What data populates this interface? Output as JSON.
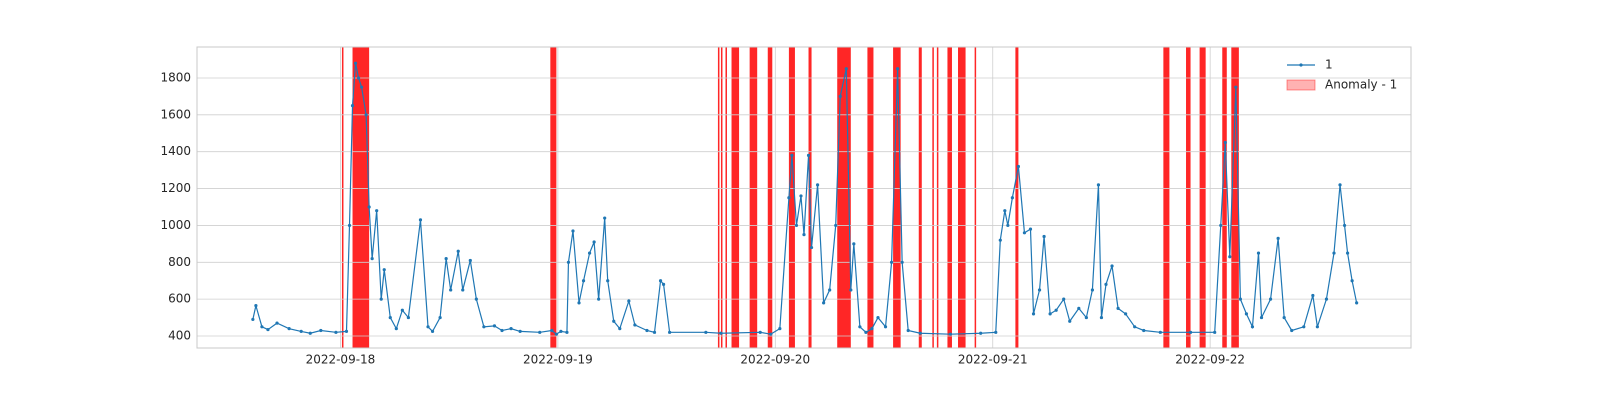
{
  "chart_data": {
    "type": "line",
    "x": [
      "2022-09-17T14:20",
      "2022-09-17T14:40",
      "2022-09-17T15:20",
      "2022-09-17T16:00",
      "2022-09-17T17:00",
      "2022-09-17T18:20",
      "2022-09-17T19:40",
      "2022-09-17T20:40",
      "2022-09-17T21:50",
      "2022-09-17T23:30",
      "2022-09-18T00:40",
      "2022-09-18T01:00",
      "2022-09-18T01:20",
      "2022-09-18T01:40",
      "2022-09-18T02:00",
      "2022-09-18T02:20",
      "2022-09-18T02:50",
      "2022-09-18T03:10",
      "2022-09-18T03:30",
      "2022-09-18T04:00",
      "2022-09-18T04:30",
      "2022-09-18T04:50",
      "2022-09-18T05:30",
      "2022-09-18T06:10",
      "2022-09-18T06:50",
      "2022-09-18T07:30",
      "2022-09-18T08:50",
      "2022-09-18T09:40",
      "2022-09-18T10:10",
      "2022-09-18T11:00",
      "2022-09-18T11:40",
      "2022-09-18T12:10",
      "2022-09-18T13:00",
      "2022-09-18T13:30",
      "2022-09-18T14:20",
      "2022-09-18T15:00",
      "2022-09-18T15:50",
      "2022-09-18T17:00",
      "2022-09-18T17:50",
      "2022-09-18T18:50",
      "2022-09-18T19:50",
      "2022-09-18T22:00",
      "2022-09-18T23:20",
      "2022-09-18T23:50",
      "2022-09-19T00:20",
      "2022-09-19T01:00",
      "2022-09-19T01:10",
      "2022-09-19T01:40",
      "2022-09-19T02:20",
      "2022-09-19T02:50",
      "2022-09-19T03:30",
      "2022-09-19T04:00",
      "2022-09-19T04:30",
      "2022-09-19T05:10",
      "2022-09-19T05:30",
      "2022-09-19T06:10",
      "2022-09-19T06:50",
      "2022-09-19T07:50",
      "2022-09-19T08:30",
      "2022-09-19T09:50",
      "2022-09-19T10:40",
      "2022-09-19T11:20",
      "2022-09-19T11:40",
      "2022-09-19T12:20",
      "2022-09-19T16:20",
      "2022-09-19T18:00",
      "2022-09-19T22:20",
      "2022-09-19T23:30",
      "2022-09-20T00:30",
      "2022-09-20T01:30",
      "2022-09-20T01:50",
      "2022-09-20T02:20",
      "2022-09-20T02:50",
      "2022-09-20T03:10",
      "2022-09-20T03:40",
      "2022-09-20T04:00",
      "2022-09-20T04:40",
      "2022-09-20T05:20",
      "2022-09-20T06:00",
      "2022-09-20T06:40",
      "2022-09-20T07:10",
      "2022-09-20T07:50",
      "2022-09-20T08:20",
      "2022-09-20T08:40",
      "2022-09-20T09:20",
      "2022-09-20T10:00",
      "2022-09-20T10:40",
      "2022-09-20T11:20",
      "2022-09-20T12:10",
      "2022-09-20T12:50",
      "2022-09-20T13:30",
      "2022-09-20T14:00",
      "2022-09-20T14:40",
      "2022-09-20T16:00",
      "2022-09-20T19:20",
      "2022-09-20T22:40",
      "2022-09-21T00:20",
      "2022-09-21T00:50",
      "2022-09-21T01:20",
      "2022-09-21T01:40",
      "2022-09-21T02:10",
      "2022-09-21T02:50",
      "2022-09-21T03:30",
      "2022-09-21T04:10",
      "2022-09-21T04:30",
      "2022-09-21T05:10",
      "2022-09-21T05:40",
      "2022-09-21T06:20",
      "2022-09-21T07:00",
      "2022-09-21T07:50",
      "2022-09-21T08:30",
      "2022-09-21T09:30",
      "2022-09-21T10:20",
      "2022-09-21T11:00",
      "2022-09-21T11:40",
      "2022-09-21T12:00",
      "2022-09-21T12:30",
      "2022-09-21T13:10",
      "2022-09-21T13:50",
      "2022-09-21T14:40",
      "2022-09-21T15:40",
      "2022-09-21T16:40",
      "2022-09-21T18:30",
      "2022-09-21T21:50",
      "2022-09-22T00:30",
      "2022-09-22T01:10",
      "2022-09-22T01:40",
      "2022-09-22T02:10",
      "2022-09-22T02:50",
      "2022-09-22T03:20",
      "2022-09-22T04:00",
      "2022-09-22T04:40",
      "2022-09-22T05:20",
      "2022-09-22T05:40",
      "2022-09-22T06:40",
      "2022-09-22T07:30",
      "2022-09-22T08:10",
      "2022-09-22T09:00",
      "2022-09-22T10:20",
      "2022-09-22T11:20",
      "2022-09-22T11:50",
      "2022-09-22T12:50",
      "2022-09-22T13:40",
      "2022-09-22T14:20",
      "2022-09-22T14:50",
      "2022-09-22T15:10",
      "2022-09-22T15:40",
      "2022-09-22T16:10"
    ],
    "series": [
      {
        "name": "1",
        "color": "#1f77b4",
        "values": [
          490,
          565,
          450,
          435,
          470,
          440,
          425,
          415,
          430,
          420,
          425,
          1000,
          1650,
          1880,
          1800,
          1750,
          1600,
          1100,
          820,
          1080,
          600,
          760,
          500,
          440,
          540,
          500,
          1030,
          450,
          425,
          500,
          820,
          650,
          860,
          650,
          810,
          600,
          450,
          455,
          430,
          440,
          425,
          420,
          430,
          410,
          425,
          420,
          800,
          970,
          580,
          700,
          850,
          910,
          600,
          1040,
          700,
          480,
          440,
          590,
          460,
          430,
          420,
          700,
          680,
          420,
          420,
          415,
          420,
          410,
          440,
          1150,
          1380,
          1000,
          1160,
          950,
          1380,
          880,
          1220,
          580,
          650,
          1000,
          1700,
          1850,
          650,
          900,
          450,
          420,
          440,
          500,
          450,
          800,
          1850,
          800,
          430,
          415,
          410,
          415,
          420,
          920,
          1080,
          1000,
          1150,
          1320,
          960,
          980,
          520,
          650,
          940,
          520,
          540,
          600,
          480,
          550,
          500,
          650,
          1220,
          500,
          680,
          780,
          550,
          520,
          450,
          430,
          420,
          420,
          420,
          1000,
          1450,
          830,
          1750,
          600,
          520,
          450,
          850,
          500,
          600,
          930,
          500,
          430,
          450,
          620,
          450,
          600,
          850,
          1220,
          1000,
          850,
          700,
          580
        ]
      }
    ],
    "anomalies": {
      "name": "Anomaly - 1",
      "color": "#ff0000",
      "spans": [
        [
          "2022-09-18T00:10",
          "2022-09-18T00:20"
        ],
        [
          "2022-09-18T01:20",
          "2022-09-18T03:10"
        ],
        [
          "2022-09-18T23:10",
          "2022-09-18T23:50"
        ],
        [
          "2022-09-19T17:40",
          "2022-09-19T17:50"
        ],
        [
          "2022-09-19T18:00",
          "2022-09-19T18:10"
        ],
        [
          "2022-09-19T18:30",
          "2022-09-19T18:40"
        ],
        [
          "2022-09-19T19:10",
          "2022-09-19T20:00"
        ],
        [
          "2022-09-19T21:10",
          "2022-09-19T22:00"
        ],
        [
          "2022-09-19T23:10",
          "2022-09-19T23:40"
        ],
        [
          "2022-09-20T01:30",
          "2022-09-20T02:10"
        ],
        [
          "2022-09-20T03:40",
          "2022-09-20T04:00"
        ],
        [
          "2022-09-20T06:50",
          "2022-09-20T08:20"
        ],
        [
          "2022-09-20T10:10",
          "2022-09-20T10:50"
        ],
        [
          "2022-09-20T13:00",
          "2022-09-20T13:50"
        ],
        [
          "2022-09-20T15:50",
          "2022-09-20T16:10"
        ],
        [
          "2022-09-20T17:20",
          "2022-09-20T17:30"
        ],
        [
          "2022-09-20T17:50",
          "2022-09-20T18:00"
        ],
        [
          "2022-09-20T19:00",
          "2022-09-20T19:30"
        ],
        [
          "2022-09-20T20:10",
          "2022-09-20T21:00"
        ],
        [
          "2022-09-20T22:00",
          "2022-09-20T22:10"
        ],
        [
          "2022-09-21T02:30",
          "2022-09-21T02:50"
        ],
        [
          "2022-09-21T18:50",
          "2022-09-21T19:30"
        ],
        [
          "2022-09-21T21:20",
          "2022-09-21T21:50"
        ],
        [
          "2022-09-21T22:50",
          "2022-09-21T23:30"
        ],
        [
          "2022-09-22T01:20",
          "2022-09-22T01:50"
        ],
        [
          "2022-09-22T02:20",
          "2022-09-22T03:10"
        ]
      ]
    },
    "xlim": [
      "2022-09-17T08:10",
      "2022-09-22T22:10"
    ],
    "xticks": [
      "2022-09-18",
      "2022-09-19",
      "2022-09-20",
      "2022-09-21",
      "2022-09-22"
    ],
    "ylim": [
      335,
      1968
    ],
    "yticks": [
      400,
      600,
      800,
      1000,
      1200,
      1400,
      1600,
      1800
    ],
    "grid": true,
    "legend": "upper right"
  }
}
